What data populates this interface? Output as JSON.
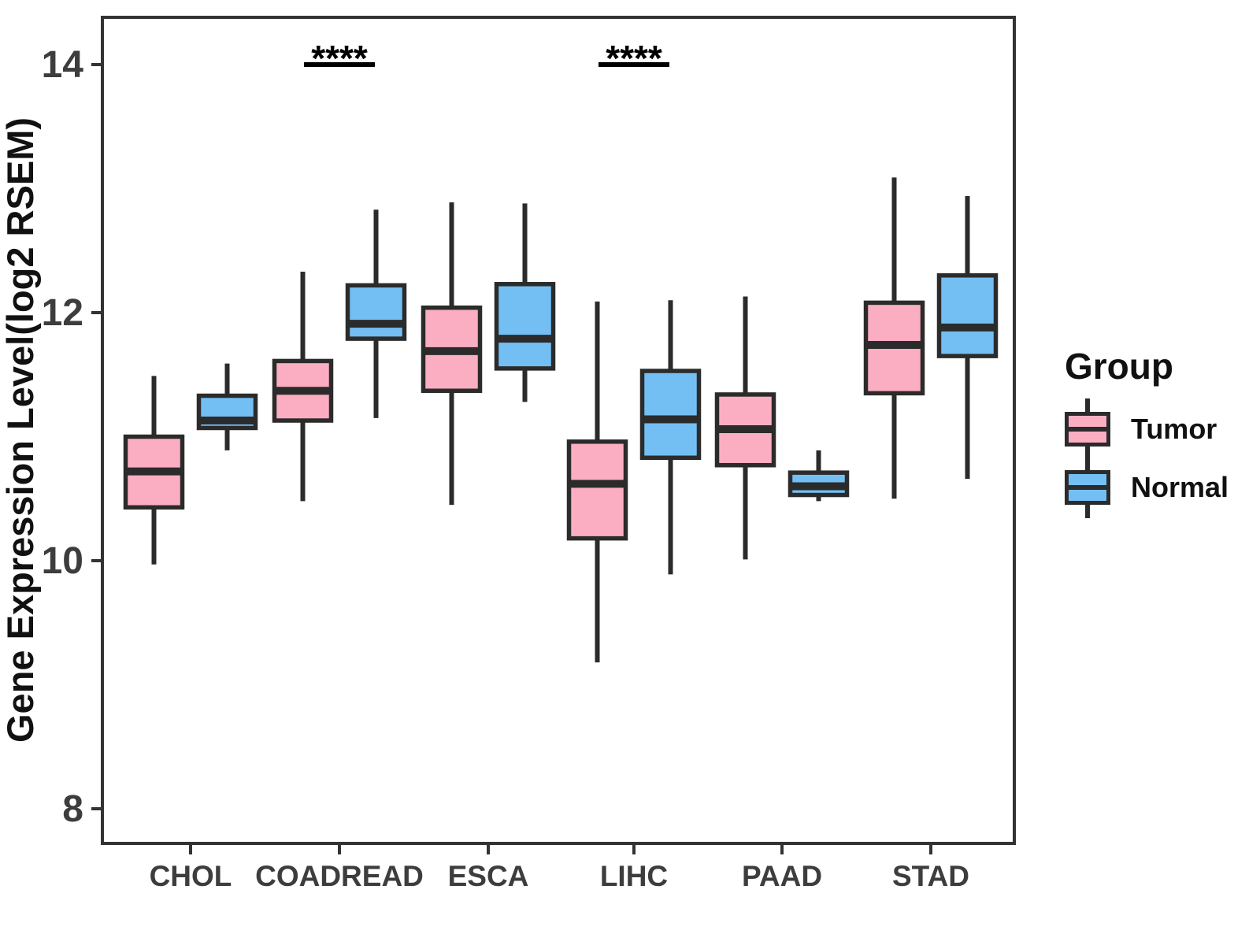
{
  "figure": {
    "background": "#ffffff"
  },
  "legend": {
    "title": "Group",
    "entries": [
      {
        "label": "Tumor",
        "color": "#FBAEC2"
      },
      {
        "label": "Normal",
        "color": "#73BFF4"
      }
    ]
  },
  "chart_data": {
    "type": "boxplot",
    "title": "",
    "xlabel": "",
    "ylabel": "Gene Expression Level(log2 RSEM)",
    "yticks": [
      8,
      10,
      12,
      14
    ],
    "ylim": [
      7.7,
      14.4
    ],
    "grid": false,
    "legend_position": "right",
    "categories": [
      "CHOL",
      "COADREAD",
      "ESCA",
      "LIHC",
      "PAAD",
      "STAD"
    ],
    "colors": {
      "tumor": "#FBAEC2",
      "normal": "#73BFF4",
      "stroke": "#2b2b2b",
      "axis": "#333333",
      "tick_label": "#3d3d3d"
    },
    "series": [
      {
        "name": "Tumor",
        "color": "#FBAEC2",
        "boxes": [
          {
            "category": "CHOL",
            "min": 9.97,
            "q1": 10.43,
            "median": 10.72,
            "q3": 11.0,
            "max": 11.49
          },
          {
            "category": "COADREAD",
            "min": 10.48,
            "q1": 11.13,
            "median": 11.37,
            "q3": 11.61,
            "max": 12.33
          },
          {
            "category": "ESCA",
            "min": 10.45,
            "q1": 11.37,
            "median": 11.69,
            "q3": 12.04,
            "max": 12.89
          },
          {
            "category": "LIHC",
            "min": 9.18,
            "q1": 10.18,
            "median": 10.62,
            "q3": 10.96,
            "max": 12.09
          },
          {
            "category": "PAAD",
            "min": 10.01,
            "q1": 10.77,
            "median": 11.06,
            "q3": 11.34,
            "max": 12.13
          },
          {
            "category": "STAD",
            "min": 10.5,
            "q1": 11.35,
            "median": 11.74,
            "q3": 12.08,
            "max": 13.09
          }
        ]
      },
      {
        "name": "Normal",
        "color": "#73BFF4",
        "boxes": [
          {
            "category": "CHOL",
            "min": 10.89,
            "q1": 11.07,
            "median": 11.13,
            "q3": 11.33,
            "max": 11.59
          },
          {
            "category": "COADREAD",
            "min": 11.15,
            "q1": 11.79,
            "median": 11.91,
            "q3": 12.22,
            "max": 12.83
          },
          {
            "category": "ESCA",
            "min": 11.28,
            "q1": 11.55,
            "median": 11.79,
            "q3": 12.23,
            "max": 12.88
          },
          {
            "category": "LIHC",
            "min": 9.89,
            "q1": 10.83,
            "median": 11.14,
            "q3": 11.53,
            "max": 12.1
          },
          {
            "category": "PAAD",
            "min": 10.48,
            "q1": 10.53,
            "median": 10.6,
            "q3": 10.71,
            "max": 10.89
          },
          {
            "category": "STAD",
            "min": 10.66,
            "q1": 11.65,
            "median": 11.88,
            "q3": 12.3,
            "max": 12.94
          }
        ]
      }
    ],
    "significance": [
      {
        "category": "COADREAD",
        "label": "****"
      },
      {
        "category": "LIHC",
        "label": "****"
      }
    ]
  }
}
